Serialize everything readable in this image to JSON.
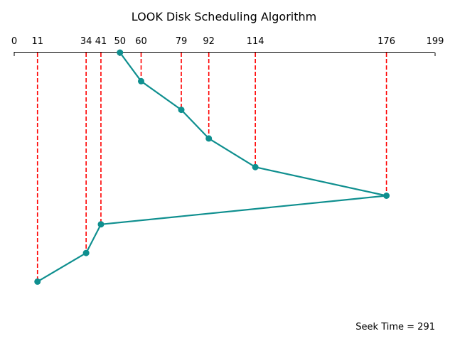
{
  "chart_data": {
    "type": "line",
    "title": "LOOK Disk Scheduling Algorithm",
    "xlim": [
      0,
      199
    ],
    "x_ticks": [
      0,
      11,
      34,
      41,
      50,
      60,
      79,
      92,
      114,
      176,
      199
    ],
    "x_axis_position": "top",
    "grid": false,
    "legend": "none",
    "series": [
      {
        "x": [
          50,
          60,
          79,
          92,
          114,
          176,
          41,
          34,
          11
        ],
        "y": [
          0,
          1,
          2,
          3,
          4,
          5,
          6,
          7,
          8
        ]
      }
    ],
    "colors": {
      "line": "#0f8f8f",
      "marker": "#0f8f8f",
      "guide": "#ff0000"
    },
    "annotation": "Seek Time = 291"
  }
}
